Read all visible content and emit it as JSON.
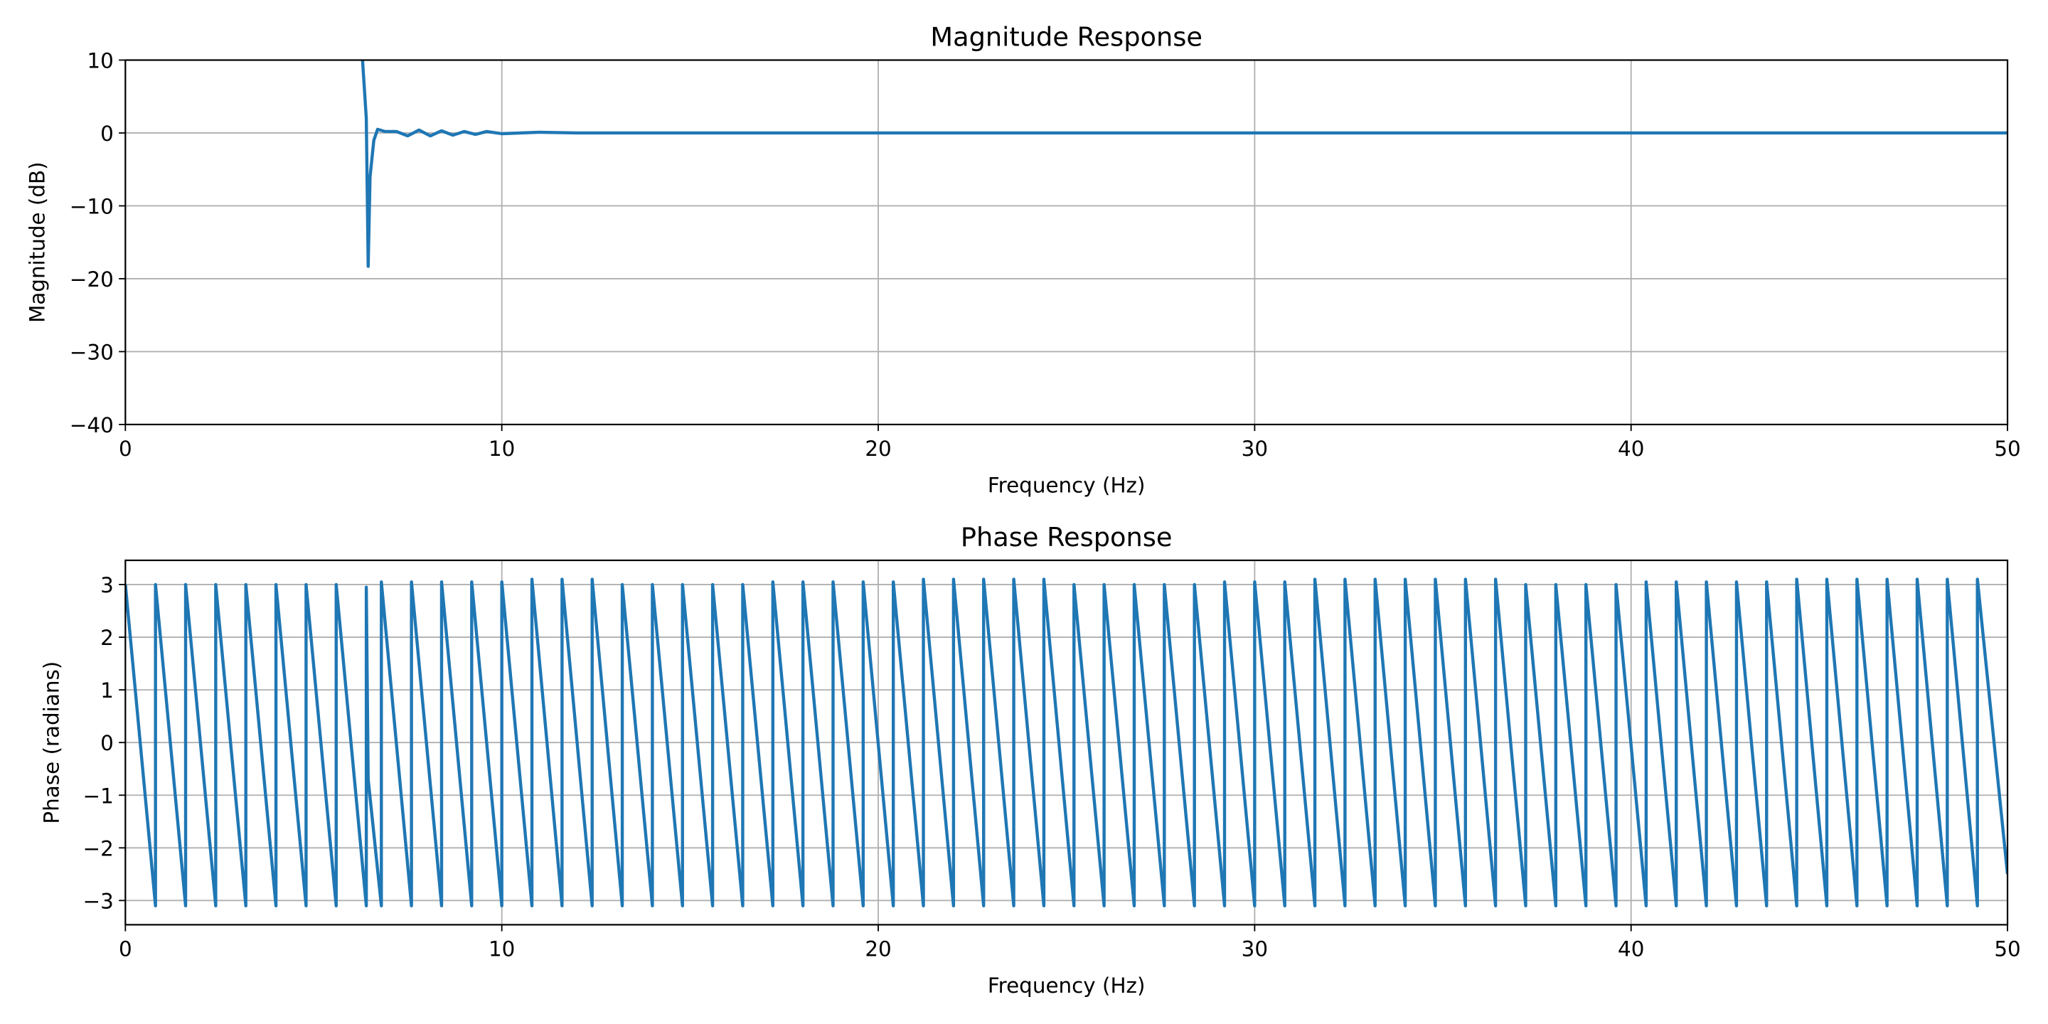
{
  "chart_data": [
    {
      "type": "line",
      "title": "Magnitude Response",
      "xlabel": "Frequency (Hz)",
      "ylabel": "Magnitude (dB)",
      "color": "#1f77b4",
      "grid": true,
      "x": [
        6.3,
        6.4,
        6.45,
        6.5,
        6.6,
        6.7,
        6.9,
        7.2,
        7.5,
        7.8,
        8.1,
        8.4,
        8.7,
        9.0,
        9.3,
        9.6,
        10.0,
        11,
        12,
        15,
        20,
        30,
        50
      ],
      "values": [
        10,
        2,
        -18.3,
        -6,
        -1,
        0.5,
        0.2,
        0.2,
        -0.4,
        0.4,
        -0.4,
        0.3,
        -0.3,
        0.2,
        -0.2,
        0.2,
        -0.1,
        0.1,
        0,
        0,
        0,
        0,
        0
      ],
      "xlim": [
        0,
        50
      ],
      "ylim": [
        -40,
        10
      ],
      "xticks": [
        0,
        10,
        20,
        30,
        40,
        50
      ],
      "yticks": [
        {
          "value": -40,
          "label": "−40"
        },
        {
          "value": -30,
          "label": "−30"
        },
        {
          "value": -20,
          "label": "−20"
        },
        {
          "value": -10,
          "label": "−10"
        },
        0,
        10
      ]
    },
    {
      "type": "line",
      "title": "Phase Response",
      "xlabel": "Frequency (Hz)",
      "ylabel": "Phase (radians)",
      "color": "#1f77b4",
      "grid": true,
      "x": [
        0,
        0.8,
        0.8,
        1.6,
        1.6,
        2.4,
        2.4,
        3.2,
        3.2,
        4.0,
        4.0,
        4.8,
        4.8,
        5.6,
        5.6,
        6.4,
        6.4,
        6.45,
        6.8,
        6.8,
        7.6,
        7.6,
        8.4,
        8.4,
        9.2,
        9.2,
        10.0,
        10.0,
        10.8,
        10.8,
        11.6,
        11.6,
        12.4,
        12.4,
        13.2,
        13.2,
        14.0,
        14.0,
        14.8,
        14.8,
        15.6,
        15.6,
        16.4,
        16.4,
        17.2,
        17.2,
        18.0,
        18.0,
        18.8,
        18.8,
        19.6,
        19.6,
        20.4,
        20.4,
        21.2,
        21.2,
        22.0,
        22.0,
        22.8,
        22.8,
        23.6,
        23.6,
        24.4,
        24.4,
        25.2,
        25.2,
        26.0,
        26.0,
        26.8,
        26.8,
        27.6,
        27.6,
        28.4,
        28.4,
        29.2,
        29.2,
        30.0,
        30.0,
        30.8,
        30.8,
        31.6,
        31.6,
        32.4,
        32.4,
        33.2,
        33.2,
        34.0,
        34.0,
        34.8,
        34.8,
        35.6,
        35.6,
        36.4,
        36.4,
        37.2,
        37.2,
        38.0,
        38.0,
        38.8,
        38.8,
        39.6,
        39.6,
        40.4,
        40.4,
        41.2,
        41.2,
        42.0,
        42.0,
        42.8,
        42.8,
        43.6,
        43.6,
        44.4,
        44.4,
        45.2,
        45.2,
        46.0,
        46.0,
        46.8,
        46.8,
        47.6,
        47.6,
        48.4,
        48.4,
        49.2,
        49.2,
        50
      ],
      "values": [
        3.0,
        -3.1,
        3.0,
        -3.1,
        3.0,
        -3.1,
        3.0,
        -3.1,
        3.0,
        -3.1,
        3.0,
        -3.1,
        3.0,
        -3.1,
        3.0,
        -3.1,
        2.95,
        -0.7,
        -3.1,
        3.05,
        -3.1,
        3.05,
        -3.1,
        3.05,
        -3.1,
        3.05,
        -3.1,
        3.05,
        -3.1,
        3.1,
        -3.1,
        3.1,
        -3.1,
        3.1,
        -3.1,
        3.0,
        -3.1,
        3.0,
        -3.1,
        3.0,
        -3.1,
        3.0,
        -3.1,
        3.0,
        -3.1,
        3.05,
        -3.1,
        3.05,
        -3.1,
        3.05,
        -3.1,
        3.05,
        -3.1,
        3.05,
        -3.1,
        3.1,
        -3.1,
        3.1,
        -3.1,
        3.1,
        -3.1,
        3.1,
        -3.1,
        3.1,
        -3.1,
        3.0,
        -3.1,
        3.0,
        -3.1,
        3.0,
        -3.1,
        3.0,
        -3.1,
        3.0,
        -3.1,
        3.05,
        -3.1,
        3.05,
        -3.1,
        3.05,
        -3.1,
        3.1,
        -3.1,
        3.1,
        -3.1,
        3.1,
        -3.1,
        3.1,
        -3.1,
        3.1,
        -3.1,
        3.1,
        -3.1,
        3.1,
        -3.1,
        3.0,
        -3.1,
        3.0,
        -3.1,
        3.0,
        -3.1,
        3.0,
        -3.1,
        3.05,
        -3.1,
        3.05,
        -3.1,
        3.05,
        -3.1,
        3.05,
        -3.1,
        3.05,
        -3.1,
        3.1,
        -3.1,
        3.1,
        -3.1,
        3.1,
        -3.1,
        3.1,
        -3.1,
        3.1,
        -3.1,
        3.1,
        -3.1,
        3.1,
        -2.5
      ],
      "xlim": [
        0,
        50
      ],
      "ylim": [
        -3.46,
        3.46
      ],
      "xticks": [
        0,
        10,
        20,
        30,
        40,
        50
      ],
      "yticks": [
        {
          "value": -3,
          "label": "−3"
        },
        {
          "value": -2,
          "label": "−2"
        },
        {
          "value": -1,
          "label": "−1"
        },
        0,
        1,
        2,
        3
      ]
    }
  ]
}
